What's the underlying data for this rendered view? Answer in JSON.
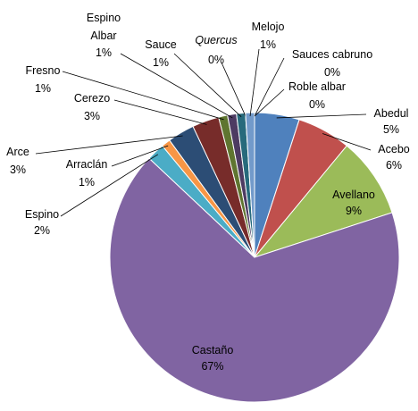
{
  "chart_data": {
    "type": "pie",
    "categories": [
      "Abedul",
      "Acebo",
      "Avellano",
      "Castaño",
      "Espino",
      "Arraclán",
      "Arce",
      "Cerezo",
      "Fresno",
      "Espino Albar",
      "Sauce",
      "Quercus",
      "Melojo",
      "Sauces cabruno",
      "Roble albar"
    ],
    "values": [
      5,
      6,
      9,
      67,
      2,
      1,
      3,
      3,
      1,
      1,
      1,
      0,
      1,
      0,
      0
    ],
    "value_labels": [
      "5%",
      "6%",
      "9%",
      "67%",
      "2%",
      "1%",
      "3%",
      "3%",
      "1%",
      "1%",
      "1%",
      "0%",
      "1%",
      "0%",
      "0%"
    ],
    "colors": [
      "#4F81BD",
      "#C0504D",
      "#9BBB59",
      "#8064A2",
      "#4BACC6",
      "#F79646",
      "#2C4D75",
      "#772C2A",
      "#5F7530",
      "#4D3B62",
      "#276A7C",
      "#B65708",
      "#729ACA",
      "#CD7371",
      "#AFC97A"
    ]
  }
}
